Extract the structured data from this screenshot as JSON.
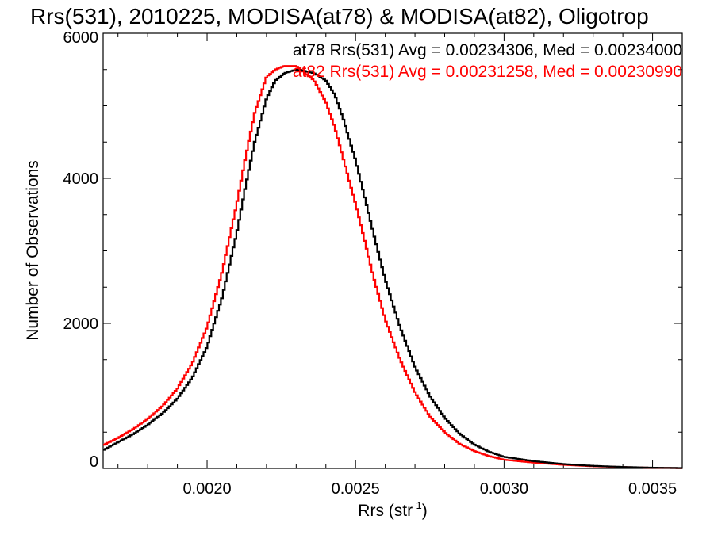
{
  "chart_data": {
    "type": "line",
    "title": "Rrs(531), 2010225, MODISA(at78) & MODISA(at82), Oligotrop",
    "xlabel": "Rrs (str",
    "xlabel_sup": "-1",
    "xlabel_close": ")",
    "ylabel": "Number of Observations",
    "xlim": [
      0.00165,
      0.0036
    ],
    "ylim": [
      0,
      6000
    ],
    "x_ticks": [
      "0.0020",
      "0.0025",
      "0.0030",
      "0.0035"
    ],
    "x_tick_values": [
      0.002,
      0.0025,
      0.003,
      0.0035
    ],
    "y_ticks": [
      "0",
      "2000",
      "4000",
      "6000"
    ],
    "y_tick_values": [
      0,
      2000,
      4000,
      6000
    ],
    "grid": false,
    "legend_placement": "top-right",
    "series": [
      {
        "name": "at78",
        "color": "#000000",
        "annotation": "at78 Rrs(531) Avg = 0.00234306, Med = 0.00234000",
        "x": [
          0.00165,
          0.0017,
          0.00175,
          0.0018,
          0.00185,
          0.0019,
          0.00195,
          0.002,
          0.00205,
          0.0021,
          0.00213,
          0.00216,
          0.0022,
          0.00223,
          0.00226,
          0.0023,
          0.00233,
          0.00236,
          0.0024,
          0.00243,
          0.00246,
          0.0025,
          0.00253,
          0.00256,
          0.0026,
          0.00265,
          0.0027,
          0.00275,
          0.0028,
          0.00285,
          0.0029,
          0.00295,
          0.003,
          0.0031,
          0.0032,
          0.0033,
          0.0034,
          0.0035,
          0.0036
        ],
        "y": [
          250,
          360,
          470,
          600,
          760,
          960,
          1250,
          1680,
          2350,
          3250,
          3900,
          4500,
          5100,
          5350,
          5450,
          5500,
          5480,
          5450,
          5350,
          5150,
          4800,
          4250,
          3750,
          3250,
          2600,
          1950,
          1400,
          1000,
          700,
          480,
          330,
          230,
          160,
          100,
          60,
          35,
          20,
          10,
          5
        ]
      },
      {
        "name": "at82",
        "color": "#ff0000",
        "annotation": "at82 Rrs(531) Avg = 0.00231258, Med = 0.00230990",
        "x": [
          0.00165,
          0.0017,
          0.00175,
          0.0018,
          0.00185,
          0.0019,
          0.00195,
          0.002,
          0.00205,
          0.0021,
          0.00213,
          0.00216,
          0.0022,
          0.00223,
          0.00226,
          0.0023,
          0.00233,
          0.00236,
          0.0024,
          0.00243,
          0.00246,
          0.0025,
          0.00253,
          0.00256,
          0.0026,
          0.00265,
          0.0027,
          0.00275,
          0.0028,
          0.00285,
          0.0029,
          0.00295,
          0.003,
          0.0031,
          0.0032,
          0.0033,
          0.0034,
          0.0035,
          0.0036
        ],
        "y": [
          320,
          420,
          540,
          680,
          860,
          1100,
          1450,
          1950,
          2700,
          3650,
          4300,
          4900,
          5400,
          5500,
          5550,
          5550,
          5450,
          5350,
          5050,
          4700,
          4250,
          3650,
          3150,
          2650,
          2050,
          1500,
          1050,
          720,
          500,
          340,
          240,
          170,
          120,
          80,
          50,
          30,
          18,
          9,
          4
        ]
      }
    ]
  }
}
